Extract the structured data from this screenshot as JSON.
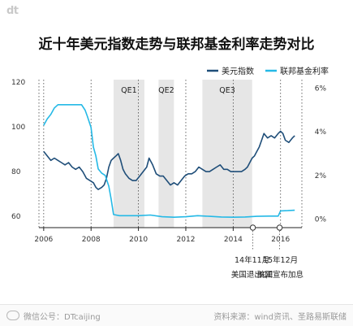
{
  "brand": "dt",
  "colors": {
    "dxy": "#1f4e79",
    "fed": "#25b9e6",
    "band": "#e6e6e6",
    "grid": "#444444"
  },
  "footer": {
    "left": "微信公号：DTcaijing",
    "right": "资料来源：wind资讯、圣路易斯联储"
  },
  "chart_data": {
    "type": "line",
    "title": "近十年美元指数走势与联邦基金利率走势对比",
    "x_range": [
      2005.8,
      2016.9
    ],
    "x_ticks": [
      2006,
      2008,
      2010,
      2012,
      2014,
      2016
    ],
    "y_left": {
      "range": [
        55,
        121
      ],
      "ticks": [
        60,
        80,
        100,
        120
      ]
    },
    "y_right": {
      "range": [
        -0.4,
        6.4
      ],
      "ticks": [
        "0%",
        "2%",
        "4%",
        "6%"
      ],
      "tick_values": [
        0,
        2,
        4,
        6
      ]
    },
    "legend_position": "top-right",
    "series": [
      {
        "name": "美元指数",
        "axis": "left",
        "x": [
          2006.0,
          2006.15,
          2006.3,
          2006.45,
          2006.6,
          2006.75,
          2006.9,
          2007.05,
          2007.2,
          2007.35,
          2007.5,
          2007.65,
          2007.8,
          2007.95,
          2008.1,
          2008.2,
          2008.3,
          2008.45,
          2008.55,
          2008.65,
          2008.75,
          2008.85,
          2008.95,
          2009.05,
          2009.15,
          2009.25,
          2009.35,
          2009.45,
          2009.6,
          2009.75,
          2009.9,
          2010.05,
          2010.2,
          2010.35,
          2010.45,
          2010.6,
          2010.75,
          2010.9,
          2011.05,
          2011.2,
          2011.35,
          2011.5,
          2011.65,
          2011.8,
          2011.95,
          2012.1,
          2012.25,
          2012.4,
          2012.55,
          2012.7,
          2012.85,
          2013.0,
          2013.15,
          2013.3,
          2013.45,
          2013.6,
          2013.75,
          2013.9,
          2014.05,
          2014.2,
          2014.35,
          2014.5,
          2014.6,
          2014.7,
          2014.8,
          2014.9,
          2015.0,
          2015.1,
          2015.2,
          2015.3,
          2015.45,
          2015.6,
          2015.75,
          2015.9,
          2016.0,
          2016.1,
          2016.2,
          2016.35,
          2016.5,
          2016.6
        ],
        "y": [
          89,
          87,
          85,
          86,
          85,
          84,
          83,
          84,
          82,
          81,
          82,
          80,
          77,
          76,
          75,
          73,
          72,
          73,
          74,
          77,
          82,
          85,
          86,
          87,
          88,
          85,
          81,
          79,
          77,
          76,
          76,
          78,
          80,
          82,
          86,
          83,
          79,
          78,
          78,
          76,
          74,
          75,
          74,
          76,
          78,
          79,
          79,
          80,
          82,
          81,
          80,
          80,
          81,
          82,
          83,
          81,
          81,
          80,
          80,
          80,
          80,
          81,
          82,
          84,
          86,
          87,
          89,
          91,
          94,
          97,
          95,
          96,
          95,
          97,
          98,
          97,
          94,
          93,
          95,
          96
        ]
      },
      {
        "name": "联邦基金利率",
        "axis": "right",
        "x": [
          2006.0,
          2006.15,
          2006.3,
          2006.45,
          2006.6,
          2006.8,
          2007.0,
          2007.2,
          2007.4,
          2007.6,
          2007.75,
          2007.85,
          2008.0,
          2008.1,
          2008.2,
          2008.3,
          2008.45,
          2008.6,
          2008.75,
          2008.85,
          2008.95,
          2009.2,
          2009.6,
          2010.0,
          2010.5,
          2011.0,
          2011.5,
          2012.0,
          2012.5,
          2013.0,
          2013.5,
          2014.0,
          2014.5,
          2015.0,
          2015.5,
          2015.9,
          2016.0,
          2016.3,
          2016.6
        ],
        "y": [
          4.3,
          4.6,
          4.8,
          5.1,
          5.25,
          5.25,
          5.25,
          5.25,
          5.25,
          5.25,
          5.0,
          4.7,
          4.2,
          3.3,
          2.9,
          2.3,
          2.1,
          2.0,
          1.5,
          0.9,
          0.2,
          0.15,
          0.15,
          0.15,
          0.18,
          0.1,
          0.08,
          0.1,
          0.15,
          0.12,
          0.09,
          0.08,
          0.09,
          0.12,
          0.13,
          0.13,
          0.37,
          0.38,
          0.4
        ]
      }
    ],
    "qe_bands": [
      {
        "label": "QE1",
        "start": 2008.95,
        "end": 2010.25
      },
      {
        "label": "QE2",
        "start": 2010.85,
        "end": 2011.5
      },
      {
        "label": "QE3",
        "start": 2012.7,
        "end": 2014.8
      }
    ],
    "events": [
      {
        "date_label": "14年11月",
        "text": "美国退出QE",
        "x": 2014.83
      },
      {
        "date_label": "15年12月",
        "text": "美国宣布加息",
        "x": 2015.96
      }
    ]
  }
}
